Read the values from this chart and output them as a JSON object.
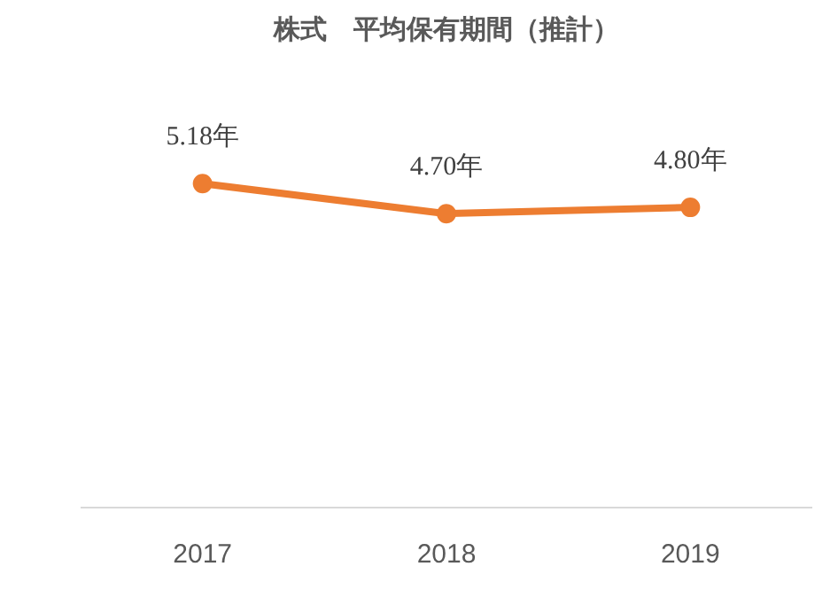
{
  "chart_data": {
    "type": "line",
    "title": "株式　平均保有期間（推計）",
    "categories": [
      "2017",
      "2018",
      "2019"
    ],
    "series": [
      {
        "color": "#ed7d31",
        "values": [
          5.18,
          4.7,
          4.8
        ],
        "value_labels": [
          "5.18年",
          "4.70年",
          "4.80年"
        ]
      }
    ],
    "tick_labels": "x",
    "marker": "circle",
    "line_style": "solid"
  }
}
